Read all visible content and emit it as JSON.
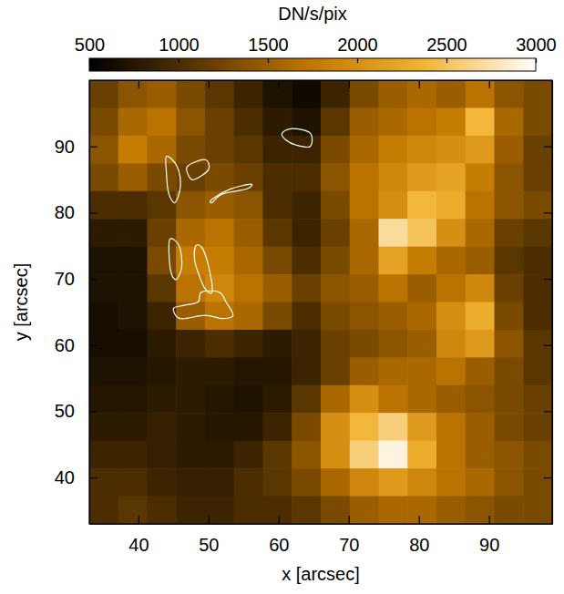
{
  "chart_data": {
    "type": "heatmap",
    "xlabel": "x [arcsec]",
    "ylabel": "y [arcsec]",
    "xlim": [
      33,
      99
    ],
    "ylim": [
      33,
      100
    ],
    "xticks": [
      40,
      50,
      60,
      70,
      80,
      90
    ],
    "yticks": [
      40,
      50,
      60,
      70,
      80,
      90
    ],
    "z": [
      [
        1200,
        1400,
        1500,
        1300,
        1100,
        900,
        700,
        600,
        900,
        1300,
        1500,
        1600,
        1500,
        1700,
        1400,
        1300
      ],
      [
        1300,
        1600,
        1700,
        1400,
        1200,
        1000,
        800,
        700,
        1100,
        1500,
        1600,
        1700,
        1800,
        2400,
        1600,
        1300
      ],
      [
        1400,
        1800,
        1600,
        1300,
        1200,
        1100,
        900,
        900,
        1300,
        1600,
        1800,
        1900,
        2000,
        2100,
        1500,
        1200
      ],
      [
        1300,
        1500,
        1300,
        1200,
        1300,
        1200,
        1000,
        1000,
        1400,
        1700,
        1900,
        2100,
        2200,
        1800,
        1400,
        1200
      ],
      [
        1000,
        1000,
        1100,
        1400,
        1500,
        1400,
        1000,
        900,
        1300,
        1700,
        2000,
        2400,
        2300,
        1700,
        1400,
        1300
      ],
      [
        800,
        800,
        1200,
        1600,
        1700,
        1500,
        1100,
        900,
        1200,
        1600,
        2700,
        2500,
        2000,
        1600,
        1200,
        1100
      ],
      [
        700,
        700,
        1300,
        1800,
        1800,
        1600,
        1300,
        1000,
        1300,
        1600,
        2200,
        1800,
        1600,
        1500,
        1100,
        1000
      ],
      [
        700,
        700,
        1100,
        1700,
        1900,
        1700,
        1500,
        1200,
        1400,
        1500,
        1700,
        1500,
        1700,
        1900,
        1200,
        1000
      ],
      [
        650,
        700,
        900,
        1500,
        1700,
        1600,
        1300,
        1000,
        1300,
        1400,
        1500,
        1600,
        2000,
        2300,
        1300,
        1000
      ],
      [
        650,
        650,
        800,
        900,
        1000,
        900,
        800,
        900,
        1200,
        1300,
        1400,
        1500,
        1900,
        2100,
        1400,
        1100
      ],
      [
        700,
        700,
        750,
        800,
        800,
        750,
        750,
        900,
        1200,
        1500,
        1600,
        1600,
        1700,
        1500,
        1300,
        1100
      ],
      [
        750,
        750,
        800,
        800,
        750,
        700,
        800,
        1100,
        1600,
        2000,
        1700,
        1600,
        1500,
        1400,
        1300,
        1200
      ],
      [
        800,
        800,
        850,
        800,
        750,
        750,
        900,
        1300,
        2000,
        2400,
        2600,
        2100,
        1700,
        1500,
        1300,
        1200
      ],
      [
        900,
        900,
        850,
        800,
        800,
        900,
        1100,
        1400,
        2000,
        2600,
        2900,
        2300,
        1700,
        1500,
        1400,
        1300
      ],
      [
        1000,
        1000,
        900,
        850,
        850,
        1000,
        1100,
        1300,
        1600,
        1900,
        2100,
        1900,
        1700,
        1600,
        1400,
        1300
      ],
      [
        1000,
        1100,
        1000,
        900,
        900,
        1000,
        1000,
        1100,
        1300,
        1500,
        1600,
        1600,
        1500,
        1400,
        1300,
        1300
      ]
    ],
    "colorbar": {
      "label": "DN/s/pix",
      "range": [
        500,
        3000
      ],
      "ticks": [
        500,
        1000,
        1500,
        2000,
        2500,
        3000
      ]
    },
    "contours": [
      {
        "x": [
          44,
          45.5,
          46,
          45.2,
          44.3,
          44
        ],
        "y": [
          88.5,
          87,
          84,
          81.5,
          83,
          86
        ]
      },
      {
        "x": [
          47,
          49.5,
          50,
          48,
          47.2
        ],
        "y": [
          87,
          88,
          86.5,
          85,
          85.5
        ]
      },
      {
        "x": [
          50.5,
          53,
          56,
          55.5,
          52,
          50.5
        ],
        "y": [
          82,
          83.5,
          84.3,
          83.6,
          82.8,
          81.5
        ]
      },
      {
        "x": [
          60.5,
          62,
          64.5,
          64.5,
          62.5,
          61
        ],
        "y": [
          92,
          92.7,
          92,
          90,
          90.2,
          91
        ]
      },
      {
        "x": [
          44.5,
          45.8,
          46.2,
          45.5,
          44.8,
          44.4
        ],
        "y": [
          76,
          75,
          72,
          70,
          70.5,
          73
        ]
      },
      {
        "x": [
          48.2,
          49.2,
          50.2,
          50.5,
          49.5,
          48.5,
          48
        ],
        "y": [
          75,
          74.5,
          71,
          68,
          68.5,
          71,
          73
        ]
      },
      {
        "x": [
          49,
          51.5,
          52.5,
          53.5,
          52,
          49.5,
          46,
          45,
          46.5,
          48.5
        ],
        "y": [
          68,
          68,
          66.5,
          64.5,
          64,
          64.5,
          64,
          65.5,
          66,
          66.5
        ]
      }
    ]
  }
}
